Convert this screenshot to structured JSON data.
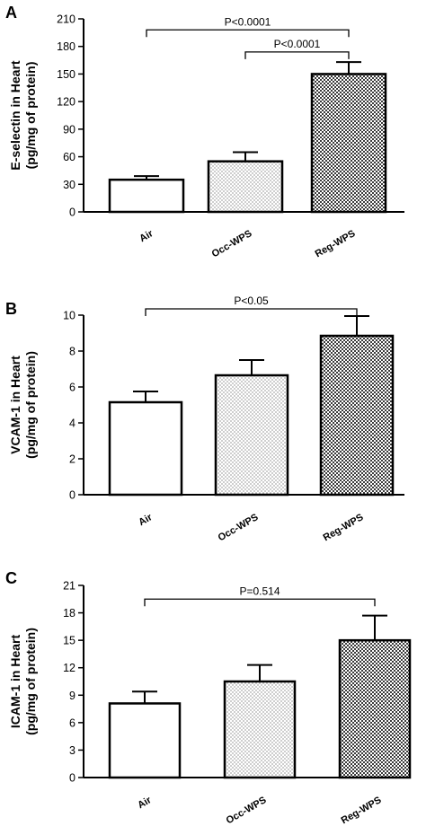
{
  "chart_data": [
    {
      "panel": "A",
      "type": "bar",
      "categories": [
        "Air",
        "Occ-WPS",
        "Reg-WPS"
      ],
      "values": [
        35,
        55,
        150
      ],
      "errors": [
        4,
        10,
        13
      ],
      "patterns": [
        "none",
        "dots",
        "checker"
      ],
      "ylabel": [
        "E-selectin in Heart",
        "(pg/mg of protein)"
      ],
      "ylim": [
        0,
        210
      ],
      "yticks": [
        "0",
        "30",
        "60",
        "90",
        "120",
        "150",
        "180",
        "210"
      ],
      "annotations": [
        {
          "label": "P<0.0001",
          "from": "Air",
          "to": "Reg-WPS",
          "level": 198
        },
        {
          "label": "P<0.0001",
          "from": "Occ-WPS",
          "to": "Reg-WPS",
          "level": 174
        }
      ]
    },
    {
      "panel": "B",
      "type": "bar",
      "categories": [
        "Air",
        "Occ-WPS",
        "Reg-WPS"
      ],
      "values": [
        5.15,
        6.65,
        8.85
      ],
      "errors": [
        0.6,
        0.85,
        1.1
      ],
      "patterns": [
        "none",
        "dots",
        "checker"
      ],
      "ylabel": [
        "VCAM-1 in Heart",
        "(pg/mg of protein)"
      ],
      "ylim": [
        0,
        10
      ],
      "yticks": [
        "0",
        "2",
        "4",
        "6",
        "8",
        "10"
      ],
      "annotations": [
        {
          "label": "P<0.05",
          "from": "Air",
          "to": "Reg-WPS",
          "level": 10.35
        }
      ]
    },
    {
      "panel": "C",
      "type": "bar",
      "categories": [
        "Air",
        "Occ-WPS",
        "Reg-WPS"
      ],
      "values": [
        8.1,
        10.5,
        15.0
      ],
      "errors": [
        1.3,
        1.8,
        2.7
      ],
      "patterns": [
        "none",
        "dots",
        "checker"
      ],
      "ylabel": [
        "ICAM-1 in Heart",
        "(pg/mg of protein)"
      ],
      "ylim": [
        0,
        21
      ],
      "yticks": [
        "0",
        "3",
        "6",
        "9",
        "12",
        "15",
        "18",
        "21"
      ],
      "annotations": [
        {
          "label": "P=0.514",
          "from": "Air",
          "to": "Reg-WPS",
          "level": 19.5
        }
      ]
    }
  ]
}
